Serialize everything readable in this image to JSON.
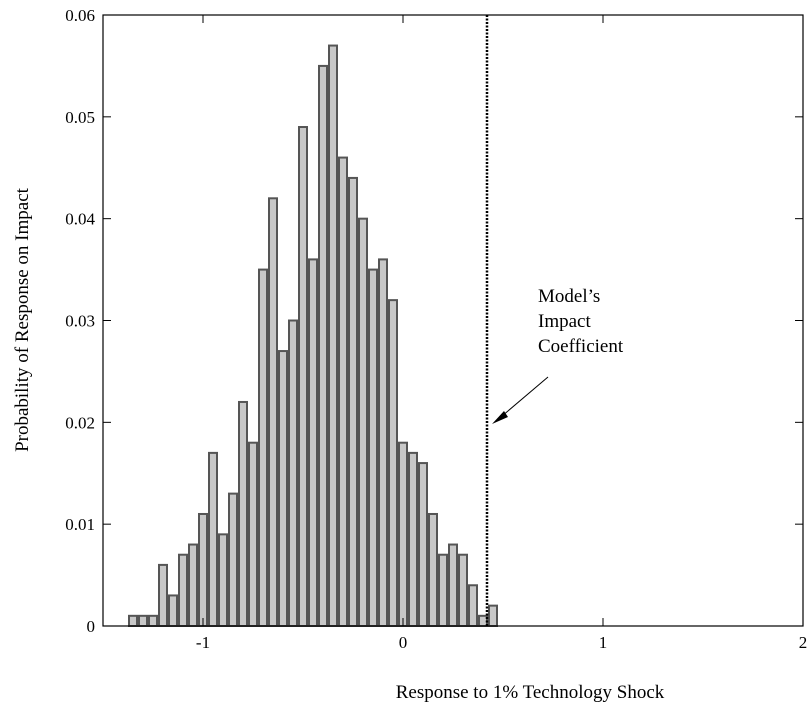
{
  "chart_data": {
    "type": "histogram",
    "x_label": "Response to 1% Technology Shock",
    "y_label": "Probability of Response on Impact",
    "bins": [
      -1.375,
      -1.325,
      -1.275,
      -1.225,
      -1.175,
      -1.125,
      -1.075,
      -1.025,
      -0.975,
      -0.925,
      -0.875,
      -0.825,
      -0.775,
      -0.725,
      -0.675,
      -0.625,
      -0.575,
      -0.525,
      -0.475,
      -0.425,
      -0.375,
      -0.325,
      -0.275,
      -0.225,
      -0.175,
      -0.125,
      -0.075,
      -0.025,
      0.025,
      0.075,
      0.125,
      0.175,
      0.225,
      0.275,
      0.325,
      0.375,
      0.425,
      0.475
    ],
    "values": [
      0.001,
      0.001,
      0.001,
      0.006,
      0.003,
      0.007,
      0.008,
      0.011,
      0.017,
      0.009,
      0.013,
      0.022,
      0.018,
      0.035,
      0.042,
      0.027,
      0.03,
      0.049,
      0.036,
      0.055,
      0.057,
      0.046,
      0.044,
      0.04,
      0.035,
      0.036,
      0.032,
      0.018,
      0.017,
      0.016,
      0.011,
      0.007,
      0.008,
      0.007,
      0.004,
      0.001,
      0.002
    ],
    "color": "#c8c8c8",
    "reference_x": 0.42,
    "annotation": [
      "Model’s",
      "Impact",
      "Coefficient"
    ],
    "xlim": [
      -1.5,
      2
    ],
    "xticks": [
      -1,
      0,
      1,
      2
    ],
    "ylim": [
      0,
      0.06
    ],
    "yticks": [
      0,
      0.01,
      0.02,
      0.03,
      0.04,
      0.05,
      0.06
    ]
  }
}
